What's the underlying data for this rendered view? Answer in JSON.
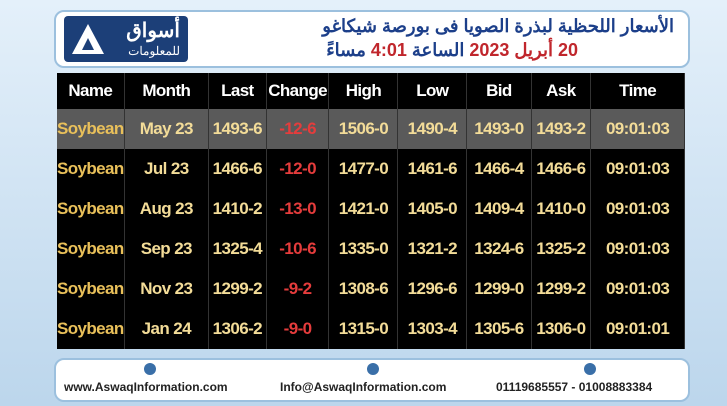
{
  "header": {
    "logo_name": "أسواق",
    "logo_sub": "للمعلومات",
    "title": "الأسعار اللحظية لبذرة الصويا فى بورصة شيكاغو",
    "subtitle": [
      "20 أبريل 2023",
      "الساعة",
      "4:01",
      "مساءً"
    ]
  },
  "table": {
    "columns": [
      "Name",
      "Month",
      "Last",
      "Change",
      "High",
      "Low",
      "Bid",
      "Ask",
      "Time"
    ],
    "rows": [
      [
        "Soybean",
        "May 23",
        "1493-6",
        "-12-6",
        "1506-0",
        "1490-4",
        "1493-0",
        "1493-2",
        "09:01:03"
      ],
      [
        "Soybean",
        "Jul 23",
        "1466-6",
        "-12-0",
        "1477-0",
        "1461-6",
        "1466-4",
        "1466-6",
        "09:01:03"
      ],
      [
        "Soybean",
        "Aug 23",
        "1410-2",
        "-13-0",
        "1421-0",
        "1405-0",
        "1409-4",
        "1410-0",
        "09:01:03"
      ],
      [
        "Soybean",
        "Sep 23",
        "1325-4",
        "-10-6",
        "1335-0",
        "1321-2",
        "1324-6",
        "1325-2",
        "09:01:03"
      ],
      [
        "Soybean",
        "Nov 23",
        "1299-2",
        "-9-2",
        "1308-6",
        "1296-6",
        "1299-0",
        "1299-2",
        "09:01:03"
      ],
      [
        "Soybean",
        "Jan 24",
        "1306-2",
        "-9-0",
        "1315-0",
        "1303-4",
        "1305-6",
        "1306-0",
        "09:01:01"
      ]
    ]
  },
  "footer": {
    "website": "www.AswaqInformation.com",
    "email": "Info@AswaqInformation.com",
    "phones": "01119685557 - 01008883384"
  }
}
